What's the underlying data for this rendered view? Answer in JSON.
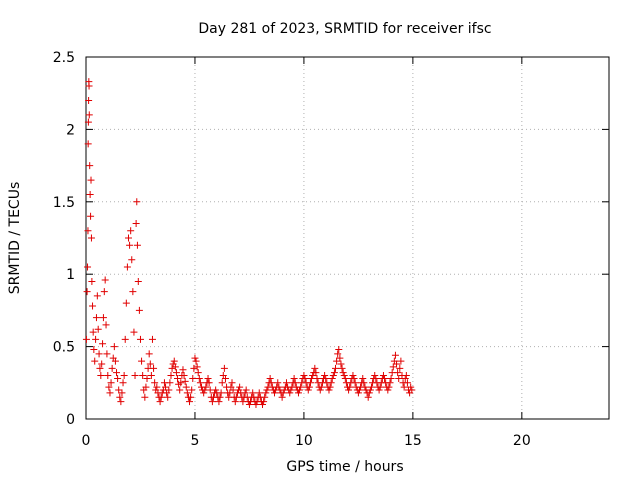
{
  "chart_data": {
    "type": "scatter",
    "title": "Day 281 of 2023, SRMTID for receiver ifsc",
    "xlabel": "GPS time / hours",
    "ylabel": "SRMTID / TECUs",
    "xlim": [
      0,
      24
    ],
    "ylim": [
      0,
      2.5
    ],
    "xticks": [
      0,
      5,
      10,
      15,
      20
    ],
    "yticks": [
      0,
      0.5,
      1,
      1.5,
      2,
      2.5
    ],
    "xtick_labels": [
      "0",
      "5",
      "10",
      "15",
      "20"
    ],
    "ytick_labels": [
      "0",
      "0.5",
      "1",
      "1.5",
      "2",
      "2.5"
    ],
    "grid": true,
    "marker": "+",
    "marker_color": "#e00000",
    "series": [
      {
        "name": "SRMTID",
        "points": [
          [
            0.02,
            0.55
          ],
          [
            0.05,
            0.88
          ],
          [
            0.07,
            1.05
          ],
          [
            0.09,
            1.3
          ],
          [
            0.1,
            1.9
          ],
          [
            0.11,
            2.05
          ],
          [
            0.12,
            2.2
          ],
          [
            0.13,
            2.33
          ],
          [
            0.14,
            2.3
          ],
          [
            0.15,
            2.1
          ],
          [
            0.17,
            1.75
          ],
          [
            0.19,
            1.55
          ],
          [
            0.21,
            1.4
          ],
          [
            0.23,
            1.65
          ],
          [
            0.25,
            1.25
          ],
          [
            0.27,
            0.95
          ],
          [
            0.3,
            0.78
          ],
          [
            0.33,
            0.6
          ],
          [
            0.36,
            0.48
          ],
          [
            0.4,
            0.4
          ],
          [
            0.44,
            0.55
          ],
          [
            0.48,
            0.7
          ],
          [
            0.52,
            0.85
          ],
          [
            0.56,
            0.62
          ],
          [
            0.6,
            0.45
          ],
          [
            0.64,
            0.35
          ],
          [
            0.68,
            0.3
          ],
          [
            0.72,
            0.38
          ],
          [
            0.76,
            0.52
          ],
          [
            0.8,
            0.7
          ],
          [
            0.84,
            0.88
          ],
          [
            0.88,
            0.96
          ],
          [
            0.92,
            0.65
          ],
          [
            0.96,
            0.45
          ],
          [
            1.0,
            0.3
          ],
          [
            1.05,
            0.22
          ],
          [
            1.1,
            0.18
          ],
          [
            1.15,
            0.25
          ],
          [
            1.2,
            0.35
          ],
          [
            1.25,
            0.42
          ],
          [
            1.3,
            0.5
          ],
          [
            1.35,
            0.4
          ],
          [
            1.4,
            0.32
          ],
          [
            1.45,
            0.28
          ],
          [
            1.5,
            0.2
          ],
          [
            1.55,
            0.15
          ],
          [
            1.6,
            0.12
          ],
          [
            1.65,
            0.18
          ],
          [
            1.7,
            0.25
          ],
          [
            1.75,
            0.3
          ],
          [
            1.8,
            0.55
          ],
          [
            1.85,
            0.8
          ],
          [
            1.9,
            1.05
          ],
          [
            1.95,
            1.25
          ],
          [
            2.0,
            1.2
          ],
          [
            2.05,
            1.3
          ],
          [
            2.1,
            1.1
          ],
          [
            2.15,
            0.88
          ],
          [
            2.2,
            0.6
          ],
          [
            2.25,
            0.3
          ],
          [
            2.3,
            1.35
          ],
          [
            2.33,
            1.5
          ],
          [
            2.36,
            1.2
          ],
          [
            2.4,
            0.95
          ],
          [
            2.45,
            0.75
          ],
          [
            2.5,
            0.55
          ],
          [
            2.55,
            0.4
          ],
          [
            2.6,
            0.3
          ],
          [
            2.65,
            0.2
          ],
          [
            2.7,
            0.15
          ],
          [
            2.75,
            0.22
          ],
          [
            2.8,
            0.28
          ],
          [
            2.85,
            0.35
          ],
          [
            2.9,
            0.45
          ],
          [
            2.95,
            0.38
          ],
          [
            3.0,
            0.3
          ],
          [
            3.05,
            0.55
          ],
          [
            3.1,
            0.35
          ],
          [
            3.15,
            0.25
          ],
          [
            3.2,
            0.2
          ],
          [
            3.25,
            0.22
          ],
          [
            3.3,
            0.18
          ],
          [
            3.35,
            0.15
          ],
          [
            3.4,
            0.12
          ],
          [
            3.45,
            0.15
          ],
          [
            3.5,
            0.18
          ],
          [
            3.55,
            0.2
          ],
          [
            3.6,
            0.25
          ],
          [
            3.65,
            0.22
          ],
          [
            3.7,
            0.18
          ],
          [
            3.75,
            0.15
          ],
          [
            3.8,
            0.2
          ],
          [
            3.85,
            0.25
          ],
          [
            3.9,
            0.3
          ],
          [
            3.95,
            0.35
          ],
          [
            4.0,
            0.38
          ],
          [
            4.05,
            0.4
          ],
          [
            4.1,
            0.36
          ],
          [
            4.15,
            0.32
          ],
          [
            4.2,
            0.28
          ],
          [
            4.25,
            0.24
          ],
          [
            4.3,
            0.2
          ],
          [
            4.35,
            0.25
          ],
          [
            4.4,
            0.3
          ],
          [
            4.45,
            0.34
          ],
          [
            4.5,
            0.3
          ],
          [
            4.55,
            0.26
          ],
          [
            4.6,
            0.22
          ],
          [
            4.65,
            0.18
          ],
          [
            4.7,
            0.15
          ],
          [
            4.75,
            0.12
          ],
          [
            4.8,
            0.15
          ],
          [
            4.85,
            0.2
          ],
          [
            4.9,
            0.28
          ],
          [
            4.95,
            0.35
          ],
          [
            5.0,
            0.42
          ],
          [
            5.05,
            0.4
          ],
          [
            5.1,
            0.36
          ],
          [
            5.15,
            0.32
          ],
          [
            5.2,
            0.28
          ],
          [
            5.25,
            0.25
          ],
          [
            5.3,
            0.22
          ],
          [
            5.35,
            0.2
          ],
          [
            5.4,
            0.18
          ],
          [
            5.45,
            0.2
          ],
          [
            5.5,
            0.22
          ],
          [
            5.55,
            0.25
          ],
          [
            5.6,
            0.28
          ],
          [
            5.65,
            0.25
          ],
          [
            5.7,
            0.2
          ],
          [
            5.75,
            0.15
          ],
          [
            5.8,
            0.12
          ],
          [
            5.85,
            0.15
          ],
          [
            5.9,
            0.18
          ],
          [
            5.95,
            0.2
          ],
          [
            6.0,
            0.18
          ],
          [
            6.05,
            0.15
          ],
          [
            6.1,
            0.12
          ],
          [
            6.15,
            0.15
          ],
          [
            6.2,
            0.18
          ],
          [
            6.25,
            0.25
          ],
          [
            6.3,
            0.3
          ],
          [
            6.35,
            0.35
          ],
          [
            6.4,
            0.28
          ],
          [
            6.45,
            0.22
          ],
          [
            6.5,
            0.18
          ],
          [
            6.55,
            0.15
          ],
          [
            6.6,
            0.18
          ],
          [
            6.65,
            0.22
          ],
          [
            6.7,
            0.25
          ],
          [
            6.75,
            0.2
          ],
          [
            6.8,
            0.15
          ],
          [
            6.85,
            0.12
          ],
          [
            6.9,
            0.15
          ],
          [
            6.95,
            0.18
          ],
          [
            7.0,
            0.2
          ],
          [
            7.05,
            0.22
          ],
          [
            7.1,
            0.18
          ],
          [
            7.15,
            0.15
          ],
          [
            7.2,
            0.12
          ],
          [
            7.25,
            0.15
          ],
          [
            7.3,
            0.18
          ],
          [
            7.35,
            0.2
          ],
          [
            7.4,
            0.15
          ],
          [
            7.45,
            0.12
          ],
          [
            7.5,
            0.1
          ],
          [
            7.55,
            0.12
          ],
          [
            7.6,
            0.15
          ],
          [
            7.65,
            0.18
          ],
          [
            7.7,
            0.15
          ],
          [
            7.75,
            0.12
          ],
          [
            7.8,
            0.1
          ],
          [
            7.85,
            0.12
          ],
          [
            7.9,
            0.15
          ],
          [
            7.95,
            0.18
          ],
          [
            8.0,
            0.15
          ],
          [
            8.05,
            0.12
          ],
          [
            8.1,
            0.1
          ],
          [
            8.15,
            0.12
          ],
          [
            8.2,
            0.15
          ],
          [
            8.25,
            0.18
          ],
          [
            8.3,
            0.2
          ],
          [
            8.35,
            0.22
          ],
          [
            8.4,
            0.25
          ],
          [
            8.45,
            0.28
          ],
          [
            8.5,
            0.25
          ],
          [
            8.55,
            0.22
          ],
          [
            8.6,
            0.2
          ],
          [
            8.65,
            0.18
          ],
          [
            8.7,
            0.2
          ],
          [
            8.75,
            0.22
          ],
          [
            8.8,
            0.25
          ],
          [
            8.85,
            0.22
          ],
          [
            8.9,
            0.2
          ],
          [
            8.95,
            0.18
          ],
          [
            9.0,
            0.15
          ],
          [
            9.05,
            0.18
          ],
          [
            9.1,
            0.2
          ],
          [
            9.15,
            0.22
          ],
          [
            9.2,
            0.25
          ],
          [
            9.25,
            0.22
          ],
          [
            9.3,
            0.2
          ],
          [
            9.35,
            0.18
          ],
          [
            9.4,
            0.2
          ],
          [
            9.45,
            0.22
          ],
          [
            9.5,
            0.25
          ],
          [
            9.55,
            0.28
          ],
          [
            9.6,
            0.25
          ],
          [
            9.65,
            0.22
          ],
          [
            9.7,
            0.2
          ],
          [
            9.75,
            0.18
          ],
          [
            9.8,
            0.2
          ],
          [
            9.85,
            0.22
          ],
          [
            9.9,
            0.25
          ],
          [
            9.95,
            0.28
          ],
          [
            10.0,
            0.3
          ],
          [
            10.05,
            0.28
          ],
          [
            10.1,
            0.25
          ],
          [
            10.15,
            0.22
          ],
          [
            10.2,
            0.2
          ],
          [
            10.25,
            0.22
          ],
          [
            10.3,
            0.25
          ],
          [
            10.35,
            0.28
          ],
          [
            10.4,
            0.3
          ],
          [
            10.45,
            0.32
          ],
          [
            10.5,
            0.35
          ],
          [
            10.55,
            0.32
          ],
          [
            10.6,
            0.28
          ],
          [
            10.65,
            0.25
          ],
          [
            10.7,
            0.22
          ],
          [
            10.75,
            0.2
          ],
          [
            10.8,
            0.22
          ],
          [
            10.85,
            0.25
          ],
          [
            10.9,
            0.28
          ],
          [
            10.95,
            0.3
          ],
          [
            11.0,
            0.28
          ],
          [
            11.05,
            0.25
          ],
          [
            11.1,
            0.22
          ],
          [
            11.15,
            0.2
          ],
          [
            11.2,
            0.22
          ],
          [
            11.25,
            0.25
          ],
          [
            11.3,
            0.28
          ],
          [
            11.35,
            0.3
          ],
          [
            11.4,
            0.32
          ],
          [
            11.45,
            0.35
          ],
          [
            11.5,
            0.4
          ],
          [
            11.55,
            0.45
          ],
          [
            11.6,
            0.48
          ],
          [
            11.65,
            0.42
          ],
          [
            11.7,
            0.38
          ],
          [
            11.75,
            0.35
          ],
          [
            11.8,
            0.32
          ],
          [
            11.85,
            0.3
          ],
          [
            11.9,
            0.28
          ],
          [
            11.95,
            0.25
          ],
          [
            12.0,
            0.22
          ],
          [
            12.05,
            0.2
          ],
          [
            12.1,
            0.22
          ],
          [
            12.15,
            0.25
          ],
          [
            12.2,
            0.28
          ],
          [
            12.25,
            0.3
          ],
          [
            12.3,
            0.28
          ],
          [
            12.35,
            0.25
          ],
          [
            12.4,
            0.22
          ],
          [
            12.45,
            0.2
          ],
          [
            12.5,
            0.18
          ],
          [
            12.55,
            0.2
          ],
          [
            12.6,
            0.22
          ],
          [
            12.65,
            0.25
          ],
          [
            12.7,
            0.28
          ],
          [
            12.75,
            0.25
          ],
          [
            12.8,
            0.22
          ],
          [
            12.85,
            0.2
          ],
          [
            12.9,
            0.18
          ],
          [
            12.95,
            0.15
          ],
          [
            13.0,
            0.18
          ],
          [
            13.05,
            0.2
          ],
          [
            13.1,
            0.22
          ],
          [
            13.15,
            0.25
          ],
          [
            13.2,
            0.28
          ],
          [
            13.25,
            0.3
          ],
          [
            13.3,
            0.28
          ],
          [
            13.35,
            0.25
          ],
          [
            13.4,
            0.22
          ],
          [
            13.45,
            0.2
          ],
          [
            13.5,
            0.22
          ],
          [
            13.55,
            0.25
          ],
          [
            13.6,
            0.28
          ],
          [
            13.65,
            0.3
          ],
          [
            13.7,
            0.28
          ],
          [
            13.75,
            0.25
          ],
          [
            13.8,
            0.22
          ],
          [
            13.85,
            0.2
          ],
          [
            13.9,
            0.22
          ],
          [
            13.95,
            0.25
          ],
          [
            14.0,
            0.28
          ],
          [
            14.05,
            0.32
          ],
          [
            14.1,
            0.36
          ],
          [
            14.15,
            0.4
          ],
          [
            14.2,
            0.44
          ],
          [
            14.25,
            0.38
          ],
          [
            14.3,
            0.32
          ],
          [
            14.35,
            0.28
          ],
          [
            14.4,
            0.35
          ],
          [
            14.45,
            0.4
          ],
          [
            14.5,
            0.3
          ],
          [
            14.55,
            0.25
          ],
          [
            14.6,
            0.22
          ],
          [
            14.65,
            0.28
          ],
          [
            14.7,
            0.3
          ],
          [
            14.75,
            0.25
          ],
          [
            14.8,
            0.2
          ],
          [
            14.85,
            0.18
          ],
          [
            14.9,
            0.22
          ],
          [
            14.95,
            0.2
          ]
        ]
      }
    ]
  }
}
